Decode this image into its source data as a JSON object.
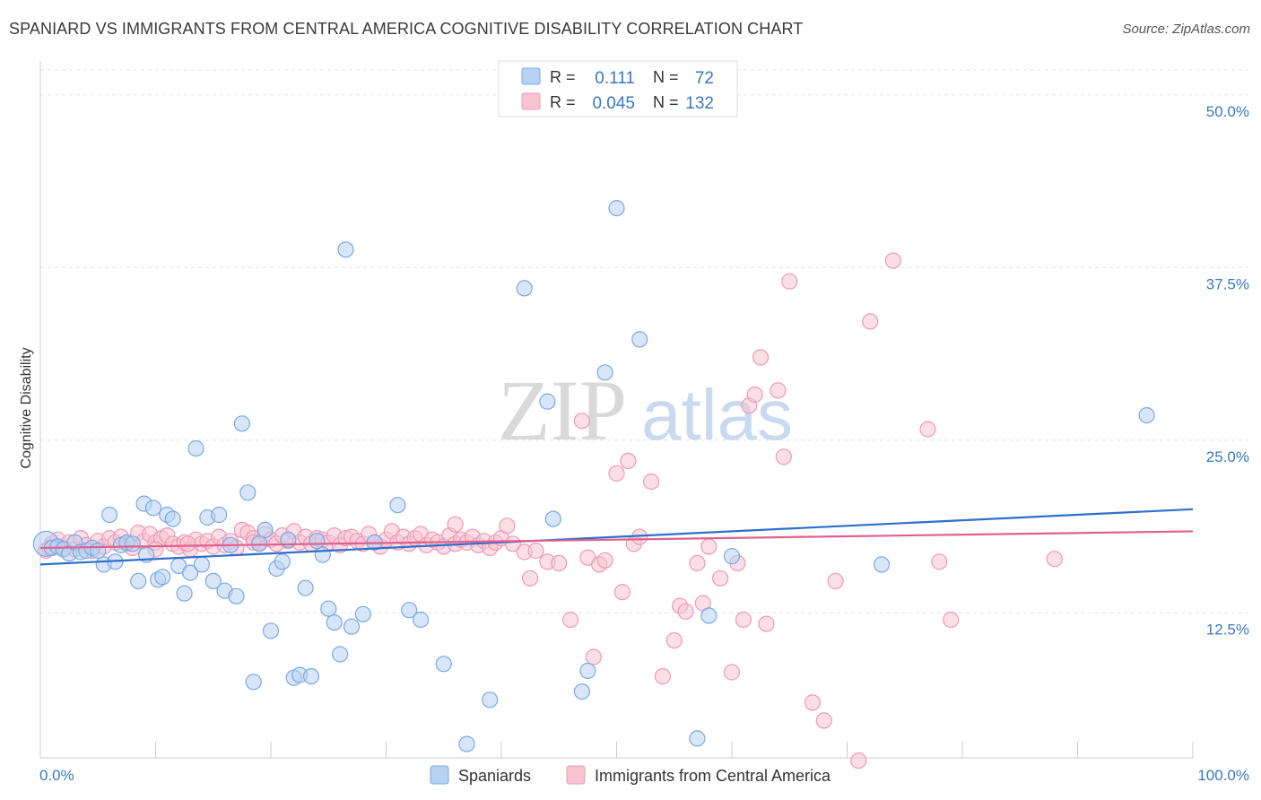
{
  "header": {
    "title": "SPANIARD VS IMMIGRANTS FROM CENTRAL AMERICA COGNITIVE DISABILITY CORRELATION CHART",
    "source": "Source: ZipAtlas.com"
  },
  "watermark": {
    "part1": "ZIP",
    "part2": "atlas"
  },
  "legend": {
    "r_label": "R =",
    "n_label": "N =",
    "rows": [
      {
        "r": "0.111",
        "n": "72",
        "color": "#b8d2f3"
      },
      {
        "r": "0.045",
        "n": "132",
        "color": "#f8c4d4"
      }
    ]
  },
  "chart_data": {
    "type": "scatter",
    "xlabel": "",
    "ylabel": "Cognitive Disability",
    "xlim": [
      0,
      100
    ],
    "ylim": [
      2,
      52
    ],
    "x_tick_labels": [
      "0.0%",
      "100.0%"
    ],
    "y_ticks": [
      12.5,
      25.0,
      37.5,
      50.0
    ],
    "y_tick_labels": [
      "12.5%",
      "25.0%",
      "37.5%",
      "50.0%"
    ],
    "grid": "horizontal dashed",
    "legend_position": "top-center",
    "series": [
      {
        "name": "Spaniards",
        "color": "#7aa9e4",
        "fill": "#b8d2f3",
        "line_color": "#2f6fca",
        "trend": [
          [
            0,
            16.0
          ],
          [
            100,
            20.0
          ]
        ],
        "points": [
          [
            0.5,
            17.5
          ],
          [
            1.0,
            17.2
          ],
          [
            1.5,
            17.3
          ],
          [
            2.0,
            17.1
          ],
          [
            2.5,
            16.8
          ],
          [
            3.0,
            17.6
          ],
          [
            3.5,
            16.9
          ],
          [
            4.0,
            17.0
          ],
          [
            4.5,
            17.2
          ],
          [
            5.0,
            17.0
          ],
          [
            5.5,
            16.0
          ],
          [
            6.0,
            19.6
          ],
          [
            6.5,
            16.2
          ],
          [
            7.0,
            17.4
          ],
          [
            7.5,
            17.6
          ],
          [
            8.0,
            17.5
          ],
          [
            8.5,
            14.8
          ],
          [
            9.0,
            20.4
          ],
          [
            9.2,
            16.7
          ],
          [
            9.8,
            20.1
          ],
          [
            10.2,
            14.9
          ],
          [
            10.6,
            15.1
          ],
          [
            11.0,
            19.6
          ],
          [
            11.5,
            19.3
          ],
          [
            12.0,
            15.9
          ],
          [
            12.5,
            13.9
          ],
          [
            13.0,
            15.4
          ],
          [
            13.5,
            24.4
          ],
          [
            14.0,
            16.0
          ],
          [
            14.5,
            19.4
          ],
          [
            15.0,
            14.8
          ],
          [
            15.5,
            19.6
          ],
          [
            16.0,
            14.1
          ],
          [
            16.5,
            17.4
          ],
          [
            17.0,
            13.7
          ],
          [
            17.5,
            26.2
          ],
          [
            18.0,
            21.2
          ],
          [
            18.5,
            7.5
          ],
          [
            19.0,
            17.5
          ],
          [
            19.5,
            18.5
          ],
          [
            20.0,
            11.2
          ],
          [
            20.5,
            15.7
          ],
          [
            21.0,
            16.2
          ],
          [
            21.5,
            17.8
          ],
          [
            22.0,
            7.8
          ],
          [
            22.5,
            8.0
          ],
          [
            23.0,
            14.3
          ],
          [
            23.5,
            7.9
          ],
          [
            24.0,
            17.7
          ],
          [
            24.5,
            16.7
          ],
          [
            25.0,
            12.8
          ],
          [
            25.5,
            11.8
          ],
          [
            26.0,
            9.5
          ],
          [
            26.5,
            38.8
          ],
          [
            27.0,
            11.5
          ],
          [
            28.0,
            12.4
          ],
          [
            29.0,
            17.6
          ],
          [
            31.0,
            20.3
          ],
          [
            32.0,
            12.7
          ],
          [
            33.0,
            12.0
          ],
          [
            35.0,
            8.8
          ],
          [
            37.0,
            3.0
          ],
          [
            39.0,
            6.2
          ],
          [
            42.0,
            36.0
          ],
          [
            44.0,
            27.8
          ],
          [
            44.5,
            19.3
          ],
          [
            47.0,
            6.8
          ],
          [
            47.5,
            8.3
          ],
          [
            49.0,
            29.9
          ],
          [
            50.0,
            41.8
          ],
          [
            52.0,
            32.3
          ],
          [
            57.0,
            3.4
          ],
          [
            58.0,
            12.3
          ],
          [
            60.0,
            16.6
          ],
          [
            73.0,
            16.0
          ],
          [
            96.0,
            26.8
          ]
        ]
      },
      {
        "name": "Immigrants from Central America",
        "color": "#ee9ab5",
        "fill": "#f8c4d4",
        "line_color": "#e0608c",
        "trend": [
          [
            0,
            17.2
          ],
          [
            100,
            18.4
          ]
        ],
        "points": [
          [
            0.5,
            17.0
          ],
          [
            1.0,
            17.5
          ],
          [
            1.5,
            17.8
          ],
          [
            2.0,
            17.2
          ],
          [
            2.5,
            17.6
          ],
          [
            3.0,
            17.1
          ],
          [
            3.5,
            17.9
          ],
          [
            4.0,
            17.4
          ],
          [
            4.5,
            17.0
          ],
          [
            5.0,
            17.7
          ],
          [
            5.5,
            17.3
          ],
          [
            6.0,
            17.9
          ],
          [
            6.5,
            17.6
          ],
          [
            7.0,
            18.0
          ],
          [
            7.5,
            17.5
          ],
          [
            8.0,
            17.2
          ],
          [
            8.5,
            18.3
          ],
          [
            9.0,
            17.7
          ],
          [
            9.5,
            18.2
          ],
          [
            10.0,
            17.6
          ],
          [
            10.5,
            17.9
          ],
          [
            11.0,
            18.1
          ],
          [
            11.5,
            17.5
          ],
          [
            12.0,
            17.3
          ],
          [
            12.5,
            17.6
          ],
          [
            13.0,
            17.1
          ],
          [
            13.5,
            17.8
          ],
          [
            14.0,
            17.5
          ],
          [
            14.5,
            17.7
          ],
          [
            15.0,
            17.3
          ],
          [
            15.5,
            18.0
          ],
          [
            16.0,
            17.4
          ],
          [
            16.5,
            17.7
          ],
          [
            17.0,
            17.2
          ],
          [
            17.5,
            18.5
          ],
          [
            18.0,
            18.3
          ],
          [
            18.5,
            17.9
          ],
          [
            19.0,
            17.6
          ],
          [
            19.5,
            18.2
          ],
          [
            20.0,
            17.8
          ],
          [
            20.5,
            17.5
          ],
          [
            21.0,
            18.1
          ],
          [
            21.5,
            17.7
          ],
          [
            22.0,
            18.4
          ],
          [
            22.5,
            17.6
          ],
          [
            23.0,
            18.0
          ],
          [
            23.5,
            17.5
          ],
          [
            24.0,
            17.9
          ],
          [
            24.5,
            17.8
          ],
          [
            25.0,
            17.6
          ],
          [
            25.5,
            18.1
          ],
          [
            26.0,
            17.4
          ],
          [
            26.5,
            17.9
          ],
          [
            27.0,
            18.0
          ],
          [
            27.5,
            17.7
          ],
          [
            28.0,
            17.5
          ],
          [
            28.5,
            18.2
          ],
          [
            29.0,
            17.6
          ],
          [
            29.5,
            17.3
          ],
          [
            30.0,
            17.8
          ],
          [
            30.5,
            18.4
          ],
          [
            31.0,
            17.6
          ],
          [
            31.5,
            18.0
          ],
          [
            32.0,
            17.5
          ],
          [
            32.5,
            17.9
          ],
          [
            33.0,
            18.2
          ],
          [
            33.5,
            17.4
          ],
          [
            34.0,
            17.8
          ],
          [
            34.5,
            17.6
          ],
          [
            35.0,
            17.3
          ],
          [
            35.5,
            18.1
          ],
          [
            36.0,
            17.5
          ],
          [
            36.5,
            17.8
          ],
          [
            37.0,
            17.6
          ],
          [
            37.5,
            18.0
          ],
          [
            38.0,
            17.4
          ],
          [
            38.5,
            17.7
          ],
          [
            39.0,
            17.2
          ],
          [
            39.5,
            17.6
          ],
          [
            40.0,
            17.9
          ],
          [
            41.0,
            17.5
          ],
          [
            42.0,
            16.9
          ],
          [
            42.5,
            15.0
          ],
          [
            43.0,
            17.0
          ],
          [
            44.0,
            16.2
          ],
          [
            45.0,
            16.1
          ],
          [
            46.0,
            12.0
          ],
          [
            47.0,
            26.4
          ],
          [
            47.5,
            16.5
          ],
          [
            48.0,
            9.3
          ],
          [
            48.5,
            16.0
          ],
          [
            49.0,
            16.3
          ],
          [
            50.0,
            22.6
          ],
          [
            50.5,
            14.0
          ],
          [
            51.0,
            23.5
          ],
          [
            51.5,
            17.5
          ],
          [
            52.0,
            18.0
          ],
          [
            53.0,
            22.0
          ],
          [
            54.0,
            7.9
          ],
          [
            55.0,
            10.5
          ],
          [
            55.5,
            13.0
          ],
          [
            56.0,
            12.6
          ],
          [
            57.0,
            16.1
          ],
          [
            57.5,
            13.2
          ],
          [
            58.0,
            17.3
          ],
          [
            59.0,
            15.0
          ],
          [
            60.0,
            8.2
          ],
          [
            60.5,
            16.1
          ],
          [
            61.0,
            12.0
          ],
          [
            61.5,
            27.5
          ],
          [
            62.0,
            28.3
          ],
          [
            62.5,
            31.0
          ],
          [
            63.0,
            11.7
          ],
          [
            64.0,
            28.6
          ],
          [
            64.5,
            23.8
          ],
          [
            65.0,
            36.5
          ],
          [
            67.0,
            6.0
          ],
          [
            68.0,
            4.7
          ],
          [
            69.0,
            14.8
          ],
          [
            71.0,
            1.8
          ],
          [
            72.0,
            33.6
          ],
          [
            74.0,
            38.0
          ],
          [
            77.0,
            25.8
          ],
          [
            78.0,
            16.2
          ],
          [
            79.0,
            12.0
          ],
          [
            88.0,
            16.4
          ],
          [
            0.8,
            17.2
          ],
          [
            10.0,
            17.1
          ],
          [
            18.5,
            17.6
          ],
          [
            36.0,
            18.9
          ],
          [
            12.8,
            17.5
          ],
          [
            40.5,
            18.8
          ]
        ]
      }
    ]
  },
  "bottom_legend": {
    "items": [
      {
        "label": "Spaniards",
        "fill": "#b8d2f3",
        "stroke": "#7aa9e4"
      },
      {
        "label": "Immigrants from Central America",
        "fill": "#f8c4d4",
        "stroke": "#ee9ab5"
      }
    ]
  }
}
